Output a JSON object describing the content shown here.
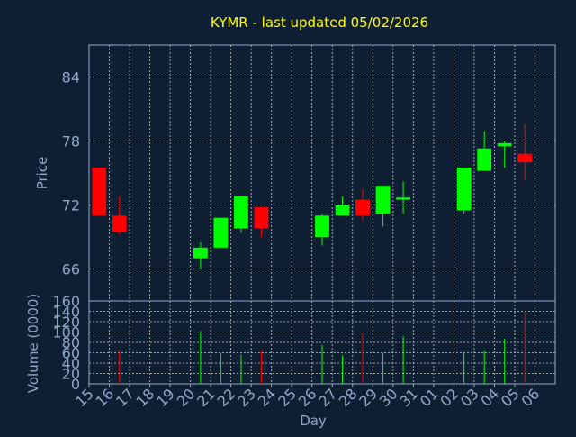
{
  "title": "KYMR - last updated 05/02/2026",
  "colors": {
    "background": "#0f1f33",
    "title": "#ffff00",
    "axis_text": "#8fa8c8",
    "grid": "#c8c8c8",
    "up": "#00ff00",
    "down": "#ff0000",
    "frame": "#8fa8c8"
  },
  "chart_data": {
    "type": "candlestick",
    "xlabel": "Day",
    "ylabel": "Price",
    "volume_label": "Volume (0000)",
    "price_ticks": [
      "66",
      "72",
      "78",
      "84"
    ],
    "price_range": [
      63,
      87
    ],
    "volume_ticks": [
      "0",
      "20",
      "40",
      "60",
      "80",
      "100",
      "120",
      "140",
      "160"
    ],
    "volume_range": [
      0,
      160
    ],
    "x_ticks": [
      "15",
      "16",
      "17",
      "18",
      "19",
      "20",
      "21",
      "22",
      "23",
      "24",
      "25",
      "26",
      "27",
      "28",
      "29",
      "30",
      "31",
      "01",
      "02",
      "03",
      "04",
      "05",
      "06"
    ],
    "candles": [
      {
        "day": "15",
        "open": 75.5,
        "close": 71.0,
        "high": 75.5,
        "low": 71.0,
        "volume": 0
      },
      {
        "day": "16",
        "open": 71.0,
        "close": 69.5,
        "high": 72.8,
        "low": 69.2,
        "volume": 65
      },
      {
        "day": "20",
        "open": 67.0,
        "close": 68.0,
        "high": 68.5,
        "low": 66.0,
        "volume": 102
      },
      {
        "day": "21",
        "open": 68.0,
        "close": 70.8,
        "high": 70.8,
        "low": 68.0,
        "volume": 60
      },
      {
        "day": "22",
        "open": 69.8,
        "close": 72.8,
        "high": 72.8,
        "low": 69.4,
        "volume": 57
      },
      {
        "day": "23",
        "open": 71.8,
        "close": 69.8,
        "high": 71.8,
        "low": 69.0,
        "volume": 65
      },
      {
        "day": "26",
        "open": 69.0,
        "close": 71.0,
        "high": 71.2,
        "low": 68.2,
        "volume": 75
      },
      {
        "day": "27",
        "open": 71.0,
        "close": 72.0,
        "high": 72.8,
        "low": 71.0,
        "volume": 55
      },
      {
        "day": "28",
        "open": 72.5,
        "close": 71.0,
        "high": 73.5,
        "low": 70.5,
        "volume": 97
      },
      {
        "day": "29",
        "open": 71.2,
        "close": 73.8,
        "high": 73.8,
        "low": 70.0,
        "volume": 60
      },
      {
        "day": "30",
        "open": 72.5,
        "close": 72.7,
        "high": 74.2,
        "low": 71.2,
        "volume": 92
      },
      {
        "day": "02",
        "open": 71.5,
        "close": 75.5,
        "high": 75.5,
        "low": 71.2,
        "volume": 60
      },
      {
        "day": "03",
        "open": 75.2,
        "close": 77.3,
        "high": 78.9,
        "low": 75.2,
        "volume": 65
      },
      {
        "day": "04",
        "open": 77.5,
        "close": 77.8,
        "high": 78.0,
        "low": 75.5,
        "volume": 87
      },
      {
        "day": "05",
        "open": 76.8,
        "close": 76.0,
        "high": 79.6,
        "low": 74.3,
        "volume": 140
      }
    ]
  }
}
